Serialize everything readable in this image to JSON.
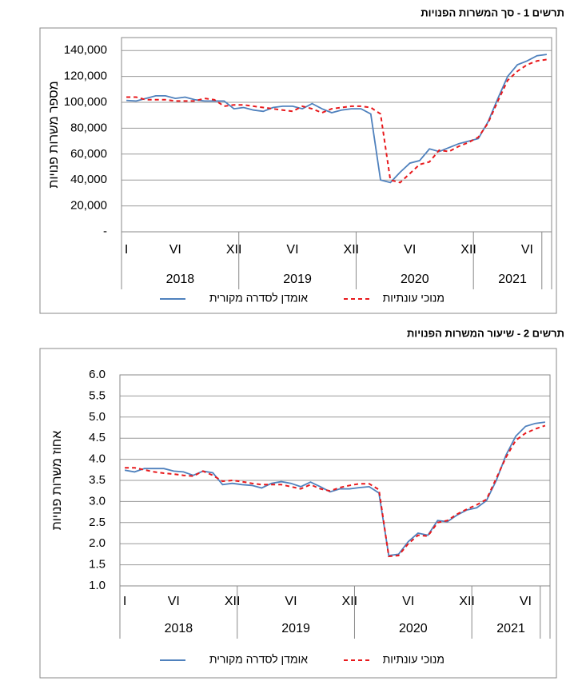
{
  "chart_data": [
    {
      "type": "line",
      "title": "תרשים 1 - סך המשרות הפנויות",
      "y_label": "מספר משרות פנויות",
      "categories": [
        "I",
        null,
        null,
        null,
        null,
        "VI",
        null,
        null,
        null,
        null,
        null,
        "XII",
        null,
        null,
        null,
        null,
        null,
        "VI",
        null,
        null,
        null,
        null,
        null,
        "XII",
        null,
        null,
        null,
        null,
        null,
        "VI",
        null,
        null,
        null,
        null,
        null,
        "XII",
        null,
        null,
        null,
        null,
        null,
        "VI",
        null,
        null
      ],
      "years": [
        "2018",
        "2019",
        "2020",
        "2021"
      ],
      "series": [
        {
          "name": "אומדן לסדרה מקורית",
          "color": "#4f81bd",
          "dashed": false,
          "values": [
            101500,
            101000,
            103000,
            105000,
            105000,
            103000,
            104000,
            102000,
            101000,
            101000,
            101000,
            95000,
            96000,
            94000,
            93000,
            96000,
            97000,
            97000,
            95000,
            99000,
            95000,
            92000,
            94000,
            95000,
            95000,
            91000,
            40000,
            38000,
            46000,
            53000,
            55000,
            64000,
            62000,
            65000,
            68000,
            70000,
            72000,
            85000,
            103000,
            120000,
            129000,
            132000,
            136000,
            137000
          ]
        },
        {
          "name": "מנוכי עונתיות",
          "color": "#e8191c",
          "dashed": true,
          "values": [
            104000,
            104000,
            102000,
            102000,
            102000,
            101000,
            101000,
            101000,
            103000,
            102000,
            97000,
            98000,
            98000,
            97000,
            96000,
            95000,
            94000,
            93000,
            97000,
            95000,
            92000,
            95000,
            96000,
            97000,
            97000,
            96000,
            91000,
            40000,
            38000,
            45000,
            52000,
            54000,
            63000,
            62000,
            66000,
            69000,
            73000,
            84000,
            101000,
            117000,
            124000,
            129000,
            132000,
            133000
          ]
        }
      ],
      "ylim": [
        0,
        150000
      ],
      "yticks": [
        {
          "value": 0,
          "label": "-"
        },
        {
          "value": 20000,
          "label": "20,000"
        },
        {
          "value": 40000,
          "label": "40,000"
        },
        {
          "value": 60000,
          "label": "60,000"
        },
        {
          "value": 80000,
          "label": "80,000"
        },
        {
          "value": 100000,
          "label": "100,000"
        },
        {
          "value": 120000,
          "label": "120,000"
        },
        {
          "value": 140000,
          "label": "140,000"
        }
      ],
      "grid": true
    },
    {
      "type": "line",
      "title": "תרשים 2 - שיעור המשרות הפנויות",
      "y_label": "אחוז משרות פנויות",
      "categories": [
        "I",
        null,
        null,
        null,
        null,
        "VI",
        null,
        null,
        null,
        null,
        null,
        "XII",
        null,
        null,
        null,
        null,
        null,
        "VI",
        null,
        null,
        null,
        null,
        null,
        "XII",
        null,
        null,
        null,
        null,
        null,
        "VI",
        null,
        null,
        null,
        null,
        null,
        "XII",
        null,
        null,
        null,
        null,
        null,
        "VI",
        null,
        null
      ],
      "years": [
        "2018",
        "2019",
        "2020",
        "2021"
      ],
      "series": [
        {
          "name": "אומדן לסדרה מקורית",
          "color": "#4f81bd",
          "dashed": false,
          "values": [
            3.74,
            3.7,
            3.78,
            3.78,
            3.78,
            3.72,
            3.7,
            3.62,
            3.72,
            3.68,
            3.4,
            3.43,
            3.4,
            3.38,
            3.32,
            3.43,
            3.47,
            3.43,
            3.35,
            3.46,
            3.35,
            3.23,
            3.3,
            3.3,
            3.33,
            3.35,
            3.2,
            1.72,
            1.75,
            2.05,
            2.25,
            2.2,
            2.55,
            2.52,
            2.68,
            2.8,
            2.85,
            3.02,
            3.5,
            4.1,
            4.55,
            4.78,
            4.85,
            4.88
          ]
        },
        {
          "name": "מנוכי עונתיות",
          "color": "#e8191c",
          "dashed": true,
          "values": [
            3.8,
            3.8,
            3.75,
            3.7,
            3.67,
            3.65,
            3.62,
            3.6,
            3.72,
            3.62,
            3.48,
            3.5,
            3.47,
            3.43,
            3.4,
            3.4,
            3.4,
            3.35,
            3.3,
            3.4,
            3.3,
            3.25,
            3.33,
            3.38,
            3.42,
            3.42,
            3.28,
            1.7,
            1.72,
            2.0,
            2.2,
            2.18,
            2.5,
            2.55,
            2.7,
            2.82,
            2.92,
            3.05,
            3.55,
            4.05,
            4.45,
            4.62,
            4.72,
            4.8
          ]
        }
      ],
      "ylim": [
        1,
        6
      ],
      "yticks": [
        {
          "value": 1,
          "label": "1.0"
        },
        1.5,
        {
          "value": 2,
          "label": "2.0"
        },
        2.5,
        {
          "value": 3,
          "label": "3.0"
        },
        3.5,
        {
          "value": 4,
          "label": "4.0"
        },
        4.5,
        {
          "value": 5,
          "label": "5.0"
        },
        5.5,
        {
          "value": 6,
          "label": "6.0"
        }
      ],
      "grid": true
    }
  ]
}
